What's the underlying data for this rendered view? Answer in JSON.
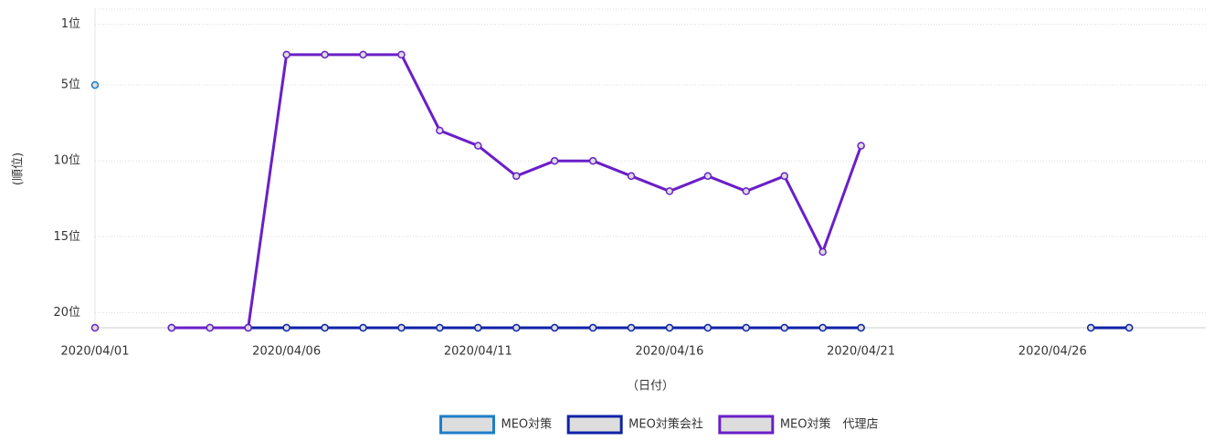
{
  "chart_data": {
    "type": "line",
    "y_label": "(順位)",
    "x_label": "（日付）",
    "categories": [
      "2020/04/01",
      null,
      null,
      null,
      null,
      "2020/04/06",
      null,
      null,
      null,
      null,
      "2020/04/11",
      null,
      null,
      null,
      null,
      "2020/04/16",
      null,
      null,
      null,
      null,
      "2020/04/21",
      null,
      null,
      null,
      null,
      "2020/04/26",
      null,
      null,
      null,
      null
    ],
    "ylim": [
      21,
      0
    ],
    "yticks": [
      {
        "value": 1,
        "label": "1位"
      },
      {
        "value": 5,
        "label": "5位"
      },
      {
        "value": 10,
        "label": "10位"
      },
      {
        "value": 15,
        "label": "15位"
      },
      {
        "value": 20,
        "label": "20位"
      }
    ],
    "grid": true,
    "legend": "bottom",
    "series": [
      {
        "name": "MEO対策",
        "color": "#1e7ec8",
        "values": [
          5,
          null,
          21,
          21,
          21,
          21,
          21,
          21,
          21,
          21,
          21,
          21,
          21,
          21,
          21,
          21,
          21,
          21,
          21,
          21,
          21,
          null,
          null,
          null,
          null,
          null,
          21,
          21,
          null,
          null
        ]
      },
      {
        "name": "MEO対策会社",
        "color": "#0f22a8",
        "values": [
          null,
          null,
          21,
          21,
          21,
          21,
          21,
          21,
          21,
          21,
          21,
          21,
          21,
          21,
          21,
          21,
          21,
          21,
          21,
          21,
          21,
          null,
          null,
          null,
          null,
          null,
          21,
          21,
          null,
          null
        ]
      },
      {
        "name": "MEO対策　代理店",
        "color": "#6a1fc8",
        "values": [
          21,
          null,
          21,
          21,
          21,
          3,
          3,
          3,
          3,
          8,
          9,
          11,
          10,
          10,
          11,
          12,
          11,
          12,
          11,
          16,
          9,
          null,
          null,
          null,
          null,
          null,
          null,
          null,
          null,
          null
        ]
      }
    ]
  }
}
